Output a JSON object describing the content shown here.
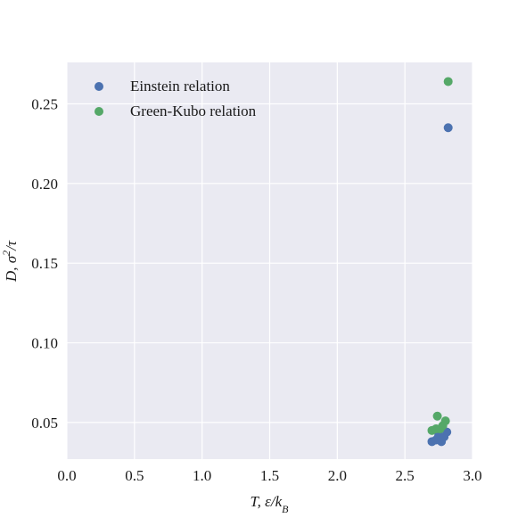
{
  "chart_data": {
    "type": "scatter",
    "title": "",
    "xlabel": "T, ε/k_B",
    "ylabel": "D, σ²/τ",
    "xlim": [
      0.0,
      3.0
    ],
    "ylim": [
      0.027,
      0.276
    ],
    "xticks": [
      0.0,
      0.5,
      1.0,
      1.5,
      2.0,
      2.5,
      3.0
    ],
    "xtick_labels": [
      "0.0",
      "0.5",
      "1.0",
      "1.5",
      "2.0",
      "2.5",
      "3.0"
    ],
    "yticks": [
      0.05,
      0.1,
      0.15,
      0.2,
      0.25
    ],
    "ytick_labels": [
      "0.05",
      "0.10",
      "0.15",
      "0.20",
      "0.25"
    ],
    "grid": true,
    "legend_position": "top-left",
    "background": "#eaeaf2",
    "series": [
      {
        "name": "Einstein relation",
        "color": "#4c72b0",
        "x": [
          2.7,
          2.73,
          2.75,
          2.77,
          2.79,
          2.81,
          2.82
        ],
        "y": [
          0.038,
          0.039,
          0.042,
          0.038,
          0.041,
          0.044,
          0.235
        ]
      },
      {
        "name": "Green-Kubo relation",
        "color": "#55a868",
        "x": [
          2.7,
          2.73,
          2.74,
          2.76,
          2.78,
          2.8,
          2.82
        ],
        "y": [
          0.045,
          0.046,
          0.054,
          0.046,
          0.048,
          0.051,
          0.264
        ]
      }
    ]
  }
}
